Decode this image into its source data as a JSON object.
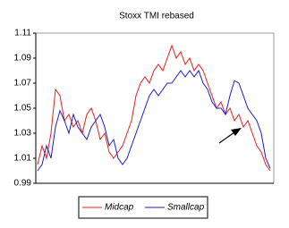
{
  "chart_data": {
    "type": "line",
    "title": "Stoxx TMI rebased",
    "ylim": [
      0.99,
      1.11
    ],
    "yticks": [
      0.99,
      1.01,
      1.03,
      1.05,
      1.07,
      1.09,
      1.11
    ],
    "legend": "bottom",
    "series": [
      {
        "name": "Midcap",
        "color": "#e8201c",
        "values": [
          1.005,
          1.02,
          1.01,
          1.03,
          1.065,
          1.06,
          1.04,
          1.045,
          1.035,
          1.04,
          1.03,
          1.045,
          1.05,
          1.04,
          1.025,
          1.03,
          1.015,
          1.01,
          1.015,
          1.02,
          1.03,
          1.04,
          1.06,
          1.07,
          1.075,
          1.07,
          1.08,
          1.085,
          1.08,
          1.09,
          1.1,
          1.09,
          1.095,
          1.085,
          1.09,
          1.08,
          1.085,
          1.08,
          1.07,
          1.06,
          1.05,
          1.055,
          1.045,
          1.05,
          1.04,
          1.045,
          1.035,
          1.04,
          1.03,
          1.02,
          1.015,
          1.005,
          1.0
        ]
      },
      {
        "name": "Smallcap",
        "color": "#1c1ccc",
        "values": [
          1.0,
          1.005,
          1.02,
          1.01,
          1.035,
          1.048,
          1.04,
          1.03,
          1.045,
          1.035,
          1.03,
          1.025,
          1.035,
          1.04,
          1.045,
          1.035,
          1.02,
          1.025,
          1.01,
          1.005,
          1.01,
          1.02,
          1.03,
          1.04,
          1.05,
          1.06,
          1.065,
          1.06,
          1.065,
          1.07,
          1.07,
          1.075,
          1.08,
          1.075,
          1.08,
          1.075,
          1.08,
          1.07,
          1.065,
          1.055,
          1.05,
          1.05,
          1.045,
          1.06,
          1.072,
          1.07,
          1.06,
          1.05,
          1.045,
          1.04,
          1.03,
          1.01,
          1.002
        ]
      }
    ]
  }
}
